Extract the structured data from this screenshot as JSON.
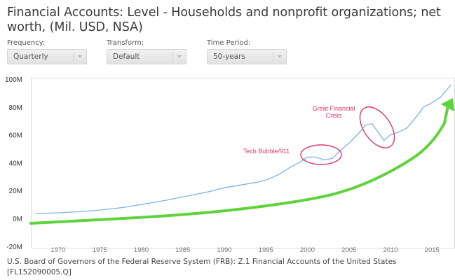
{
  "title": "Financial Accounts: Level - Households and nonprofit organizations; net worth, (Mil. USD, NSA)",
  "controls": [
    {
      "label": "Frequency:",
      "value": "Quarterly"
    },
    {
      "label": "Transform:",
      "value": "Default"
    },
    {
      "label": "Time Period:",
      "value": "50-years"
    }
  ],
  "footer": "U.S. Board of Governors of the Federal Reserve System (FRB): Z.1 Financial Accounts of the United States [FL152090005.Q]",
  "colors": {
    "series": "#7fb3e0",
    "annotation": "#e0336e",
    "trend_arrow": "#5fd33c",
    "axis": "#d0d0d0"
  },
  "chart_data": {
    "type": "line",
    "title": "Financial Accounts: Level - Households and nonprofit organizations; net worth, (Mil. USD, NSA)",
    "xlabel": "",
    "ylabel": "",
    "ylim": [
      -20,
      100
    ],
    "xlim": [
      1966.5,
      2018
    ],
    "yunit": "M",
    "yticks": [
      "-20M",
      "0M",
      "20M",
      "40M",
      "60M",
      "80M",
      "100M"
    ],
    "xticks": [
      "1970",
      "1975",
      "1980",
      "1985",
      "1990",
      "1995",
      "2000",
      "2005",
      "2010",
      "2015"
    ],
    "grid": false,
    "legend": null,
    "series": [
      {
        "name": "Households and nonprofit organizations; net worth",
        "x": [
          1967.3,
          1970,
          1973,
          1975,
          1978,
          1980,
          1983,
          1985,
          1988,
          1990,
          1992,
          1994,
          1995,
          1996,
          1997,
          1998,
          1999,
          2000,
          2001,
          2002,
          2003,
          2004,
          2005,
          2006,
          2007,
          2007.8,
          2008.5,
          2009.2,
          2010,
          2011,
          2012,
          2013,
          2014,
          2015,
          2016,
          2017.3
        ],
        "values": [
          3.5,
          4,
          5,
          6,
          8,
          10,
          13,
          15.5,
          19,
          22,
          24,
          26,
          27.5,
          30,
          33,
          37,
          40,
          44,
          44,
          42,
          43,
          49,
          54,
          60,
          67,
          68,
          62,
          56,
          60,
          62,
          65,
          72,
          80,
          83,
          87,
          96
        ]
      }
    ],
    "trend_arrow": {
      "x": [
        1966.5,
        1980,
        1990,
        2000,
        2005,
        2010,
        2015,
        2018
      ],
      "values": [
        -3.5,
        0.5,
        5,
        13,
        20,
        33,
        52,
        85
      ]
    },
    "annotations": [
      {
        "text": "Tech Bubble/911",
        "target_x": [
          2000,
          2004.5
        ],
        "shape": "ellipse"
      },
      {
        "text": "Great Financial Crisis",
        "target_x": [
          2006.5,
          2010.5
        ],
        "shape": "ellipse"
      }
    ]
  }
}
